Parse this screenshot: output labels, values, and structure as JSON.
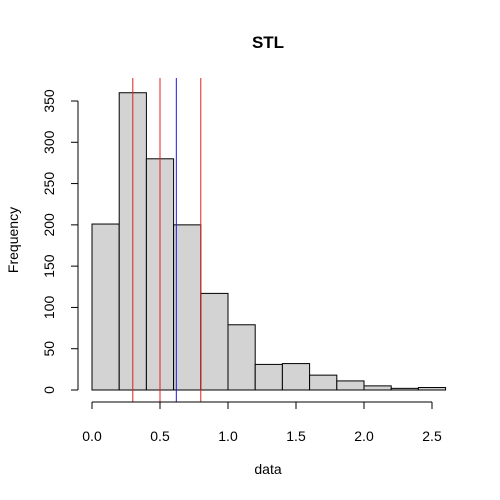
{
  "chart_data": {
    "type": "bar",
    "title": "STL",
    "xlabel": "data",
    "ylabel": "Frequency",
    "xlim": [
      0,
      2.6
    ],
    "ylim": [
      0,
      360
    ],
    "x_ticks": [
      "0.0",
      "0.5",
      "1.0",
      "1.5",
      "2.0",
      "2.5"
    ],
    "x_tick_values": [
      0,
      0.5,
      1.0,
      1.5,
      2.0,
      2.5
    ],
    "y_ticks": [
      "0",
      "50",
      "100",
      "150",
      "200",
      "250",
      "300",
      "350"
    ],
    "y_tick_values": [
      0,
      50,
      100,
      150,
      200,
      250,
      300,
      350
    ],
    "bins": [
      {
        "start": 0.0,
        "end": 0.2,
        "count": 201
      },
      {
        "start": 0.2,
        "end": 0.4,
        "count": 360
      },
      {
        "start": 0.4,
        "end": 0.6,
        "count": 280
      },
      {
        "start": 0.6,
        "end": 0.8,
        "count": 200
      },
      {
        "start": 0.8,
        "end": 1.0,
        "count": 117
      },
      {
        "start": 1.0,
        "end": 1.2,
        "count": 79
      },
      {
        "start": 1.2,
        "end": 1.4,
        "count": 31
      },
      {
        "start": 1.4,
        "end": 1.6,
        "count": 32
      },
      {
        "start": 1.6,
        "end": 1.8,
        "count": 18
      },
      {
        "start": 1.8,
        "end": 2.0,
        "count": 11
      },
      {
        "start": 2.0,
        "end": 2.2,
        "count": 5
      },
      {
        "start": 2.2,
        "end": 2.4,
        "count": 2
      },
      {
        "start": 2.4,
        "end": 2.6,
        "count": 3
      }
    ],
    "vlines": [
      {
        "x": 0.3,
        "color": "#dd2222"
      },
      {
        "x": 0.5,
        "color": "#dd2222"
      },
      {
        "x": 0.62,
        "color": "#1a1ad6"
      },
      {
        "x": 0.8,
        "color": "#dd2222"
      }
    ],
    "bar_fill": "#d3d3d3",
    "bar_stroke": "#000000",
    "grid": false
  }
}
